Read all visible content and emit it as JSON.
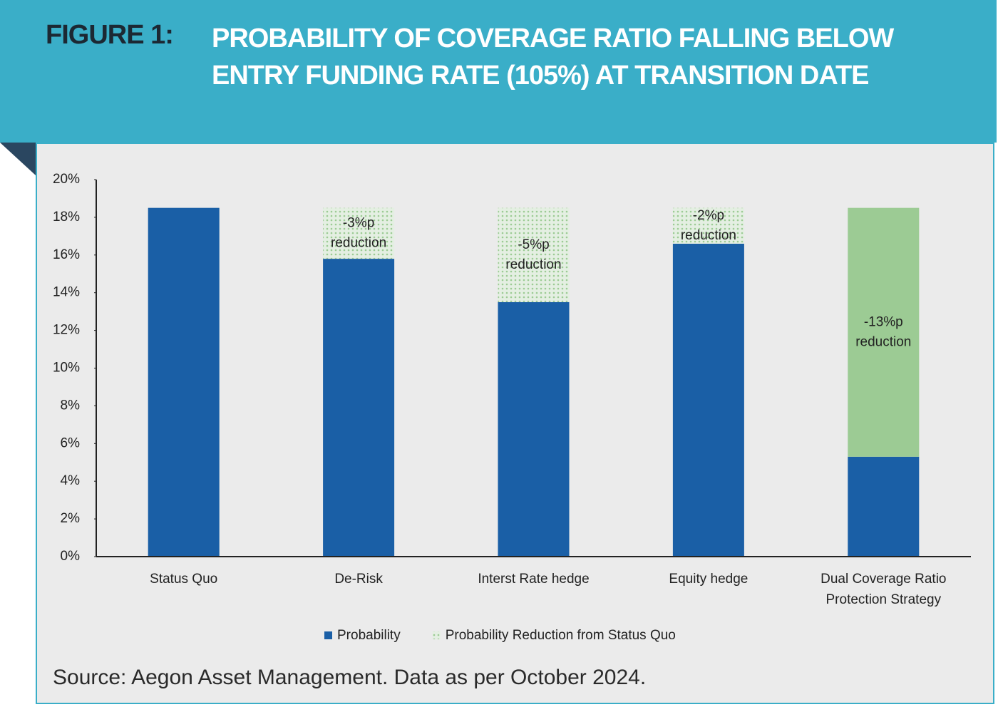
{
  "figure_label": "FIGURE 1:",
  "source": "Source: Aegon Asset Management. Data as per October 2024.",
  "chart_data": {
    "type": "stacked_bar",
    "title": "PROBABILITY OF COVERAGE RATIO FALLING BELOW ENTRY FUNDING RATE (105%) AT TRANSITION DATE",
    "categories": [
      "Status Quo",
      "De-Risk",
      "Interst Rate hedge",
      "Equity hedge",
      "Dual Coverage Ratio Protection Strategy"
    ],
    "series": [
      {
        "name": "Probability",
        "color": "#1a5fa6",
        "values": [
          18.5,
          15.8,
          13.5,
          16.6,
          5.3
        ],
        "styles": [
          "solid",
          "solid",
          "solid",
          "solid",
          "solid"
        ]
      },
      {
        "name": "Probability Reduction from Status Quo",
        "color": "#9ccb94",
        "values": [
          0,
          2.7,
          5.0,
          1.9,
          13.2
        ],
        "styles": [
          "dotted",
          "dotted",
          "dotted",
          "dotted",
          "solid"
        ]
      }
    ],
    "annotations": [
      null,
      [
        "-3%p",
        "reduction"
      ],
      [
        "-5%p",
        "reduction"
      ],
      [
        "-2%p",
        "reduction"
      ],
      [
        "-13%p",
        "reduction"
      ]
    ],
    "ylim": [
      0,
      20
    ],
    "yticks": [
      {
        "value": 0,
        "label": "0%"
      },
      {
        "value": 2,
        "label": "2%"
      },
      {
        "value": 4,
        "label": "4%"
      },
      {
        "value": 6,
        "label": "6%"
      },
      {
        "value": 8,
        "label": "8%"
      },
      {
        "value": 10,
        "label": "10%"
      },
      {
        "value": 12,
        "label": "12%"
      },
      {
        "value": 14,
        "label": "14%"
      },
      {
        "value": 16,
        "label": "16%"
      },
      {
        "value": 18,
        "label": "18%"
      },
      {
        "value": 20,
        "label": "20%"
      }
    ],
    "grid": false,
    "legend": "bottom"
  }
}
